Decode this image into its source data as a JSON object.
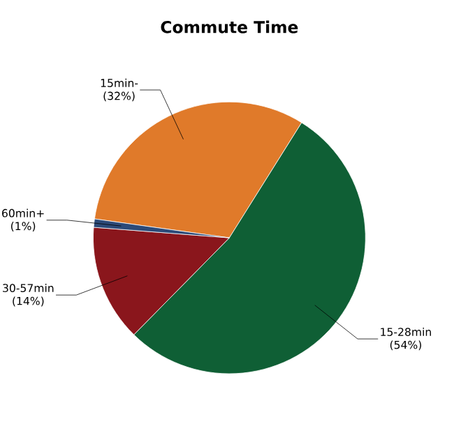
{
  "chart_data": {
    "type": "pie",
    "title": "Commute Time",
    "categories": [
      "15min-",
      "15-28min",
      "30-57min",
      "60min+"
    ],
    "values": [
      32,
      54,
      14,
      1
    ],
    "value_labels": [
      "(32%)",
      "(54%)",
      "(14%)",
      "(1%)"
    ],
    "colors": [
      "#e07a2a",
      "#0f5f35",
      "#8a161c",
      "#2c4a78"
    ]
  }
}
